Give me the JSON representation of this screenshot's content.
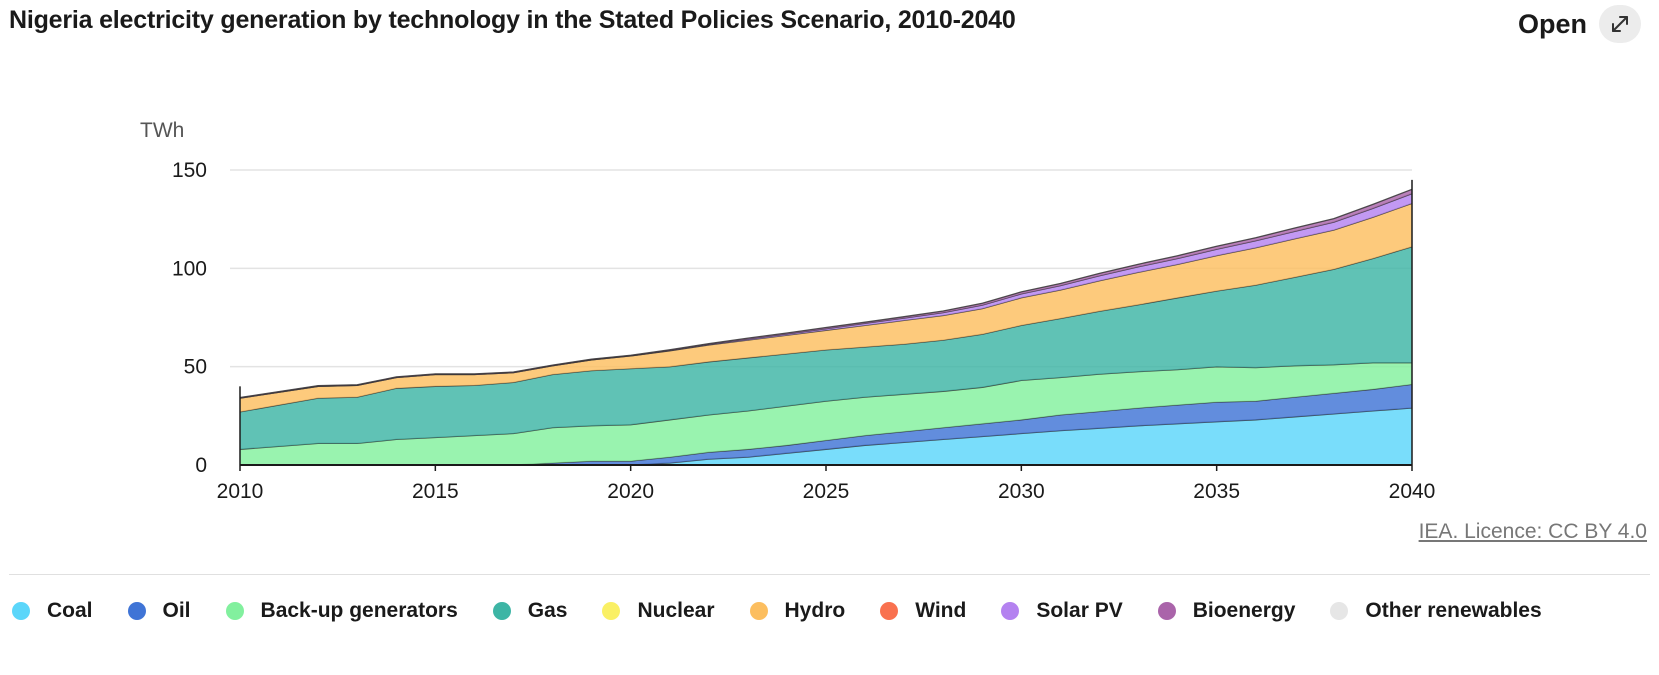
{
  "header": {
    "title": "Nigeria electricity generation by technology in the Stated Policies Scenario, 2010-2040",
    "open_label": "Open",
    "open_icon": "expand-arrows-icon"
  },
  "source": {
    "text": "IEA. Licence: CC BY 4.0"
  },
  "chart_data": {
    "type": "area",
    "stacked": true,
    "title": "Nigeria electricity generation by technology in the Stated Policies Scenario, 2010-2040",
    "unit": "TWh",
    "xlabel": "",
    "ylabel": "TWh",
    "ylim": [
      0,
      150
    ],
    "yticks": [
      0,
      50,
      100,
      150
    ],
    "xticks": [
      2010,
      2015,
      2020,
      2025,
      2030,
      2035,
      2040
    ],
    "grid": true,
    "legend_position": "bottom",
    "x": [
      2010,
      2012,
      2013,
      2014,
      2015,
      2016,
      2017,
      2018,
      2019,
      2020,
      2021,
      2022,
      2023,
      2024,
      2025,
      2026,
      2027,
      2028,
      2029,
      2030,
      2031,
      2032,
      2033,
      2034,
      2035,
      2036,
      2037,
      2038,
      2039,
      2040
    ],
    "series": [
      {
        "name": "Coal",
        "color": "#5bd6fa",
        "values": [
          0,
          0,
          0,
          0,
          0,
          0,
          0,
          0,
          0,
          0,
          1,
          3,
          4,
          6,
          8,
          10,
          11.5,
          13,
          14.5,
          16,
          17.5,
          18.7,
          20,
          21,
          22,
          23,
          24.5,
          26,
          27.5,
          29
        ]
      },
      {
        "name": "Oil",
        "color": "#3f74d6",
        "values": [
          0,
          0,
          0,
          0,
          0,
          0,
          0,
          1,
          2,
          2,
          3,
          3.5,
          4,
          4,
          4.5,
          5,
          5.5,
          6,
          6.5,
          7,
          8,
          8.5,
          9,
          9.5,
          10,
          9.5,
          10,
          10.5,
          11,
          12
        ]
      },
      {
        "name": "Back-up generators",
        "color": "#82f09e",
        "values": [
          8,
          11,
          11,
          13,
          14,
          15,
          16,
          18,
          18,
          18.5,
          19,
          19,
          19.5,
          20,
          20,
          19.5,
          19,
          18.5,
          18.5,
          20,
          19,
          19,
          18.5,
          18,
          18,
          17,
          16,
          14.5,
          13.5,
          11
        ]
      },
      {
        "name": "Gas",
        "color": "#3db5a5",
        "values": [
          19,
          23,
          23.5,
          26,
          26,
          25.5,
          26,
          27,
          28,
          28.5,
          27,
          27,
          27,
          26.5,
          26,
          25.5,
          25.5,
          26,
          27,
          28,
          30,
          32,
          34,
          36.5,
          38.5,
          42,
          45,
          48.5,
          53,
          59
        ]
      },
      {
        "name": "Nuclear",
        "color": "#faf064",
        "values": [
          0,
          0,
          0,
          0,
          0,
          0,
          0,
          0,
          0,
          0,
          0,
          0,
          0,
          0,
          0,
          0,
          0,
          0,
          0,
          0,
          0,
          0,
          0,
          0,
          0,
          0,
          0,
          0,
          0,
          0
        ]
      },
      {
        "name": "Hydro",
        "color": "#fcbe5f",
        "values": [
          7,
          6,
          6,
          5.5,
          6,
          5.5,
          5,
          4.5,
          5.5,
          6.5,
          8,
          8.5,
          9,
          9.5,
          10,
          11,
          12,
          12.5,
          13,
          14,
          14.5,
          15.5,
          16.5,
          17,
          18,
          19,
          19.5,
          20,
          21,
          22
        ]
      },
      {
        "name": "Wind",
        "color": "#f9714f",
        "values": [
          0,
          0,
          0,
          0,
          0,
          0,
          0,
          0,
          0,
          0,
          0,
          0,
          0,
          0,
          0,
          0,
          0,
          0,
          0,
          0,
          0,
          0,
          0,
          0,
          0,
          0,
          0,
          0,
          0,
          0
        ]
      },
      {
        "name": "Solar PV",
        "color": "#b482f0",
        "values": [
          0,
          0,
          0,
          0,
          0,
          0,
          0,
          0,
          0,
          0,
          0.2,
          0.3,
          0.5,
          0.6,
          0.8,
          1,
          1.2,
          1.5,
          1.8,
          2,
          2.2,
          2.5,
          2.8,
          3,
          3.2,
          3.5,
          3.8,
          4,
          4.5,
          5
        ]
      },
      {
        "name": "Bioenergy",
        "color": "#aa64aa",
        "values": [
          0.3,
          0.3,
          0.3,
          0.3,
          0.3,
          0.3,
          0.3,
          0.3,
          0.3,
          0.3,
          0.4,
          0.4,
          0.5,
          0.5,
          0.6,
          0.6,
          0.7,
          0.8,
          0.9,
          1,
          1.1,
          1.2,
          1.3,
          1.4,
          1.5,
          1.6,
          1.7,
          1.8,
          2,
          2.2
        ]
      },
      {
        "name": "Other renewables",
        "color": "#e6e6e6",
        "values": [
          0,
          0,
          0,
          0,
          0,
          0,
          0,
          0,
          0,
          0,
          0,
          0,
          0,
          0,
          0,
          0,
          0,
          0,
          0,
          0,
          0,
          0,
          0,
          0,
          0,
          0,
          0,
          0,
          0,
          0
        ]
      }
    ]
  }
}
